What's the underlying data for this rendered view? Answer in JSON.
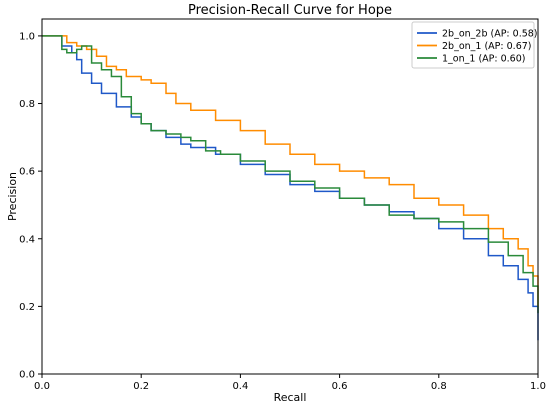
{
  "chart_data": {
    "type": "line",
    "title": "Precision-Recall Curve for Hope",
    "xlabel": "Recall",
    "ylabel": "Precision",
    "xlim": [
      0.0,
      1.0
    ],
    "ylim": [
      0.0,
      1.05
    ],
    "xticks": [
      "0.0",
      "0.2",
      "0.4",
      "0.6",
      "0.8",
      "1.0"
    ],
    "yticks": [
      "0.0",
      "0.2",
      "0.4",
      "0.6",
      "0.8",
      "1.0"
    ],
    "grid": false,
    "legend_position": "top-right",
    "series": [
      {
        "name": "2b_on_2b (AP: 0.58)",
        "color": "#1f58c8",
        "points": [
          [
            0.0,
            1.0
          ],
          [
            0.03,
            1.0
          ],
          [
            0.04,
            0.97
          ],
          [
            0.06,
            0.95
          ],
          [
            0.07,
            0.93
          ],
          [
            0.08,
            0.89
          ],
          [
            0.1,
            0.86
          ],
          [
            0.12,
            0.83
          ],
          [
            0.15,
            0.79
          ],
          [
            0.18,
            0.76
          ],
          [
            0.2,
            0.74
          ],
          [
            0.22,
            0.72
          ],
          [
            0.25,
            0.7
          ],
          [
            0.28,
            0.68
          ],
          [
            0.3,
            0.67
          ],
          [
            0.35,
            0.65
          ],
          [
            0.4,
            0.62
          ],
          [
            0.45,
            0.59
          ],
          [
            0.5,
            0.56
          ],
          [
            0.55,
            0.54
          ],
          [
            0.6,
            0.52
          ],
          [
            0.65,
            0.5
          ],
          [
            0.7,
            0.48
          ],
          [
            0.75,
            0.46
          ],
          [
            0.8,
            0.43
          ],
          [
            0.85,
            0.4
          ],
          [
            0.9,
            0.35
          ],
          [
            0.93,
            0.32
          ],
          [
            0.96,
            0.28
          ],
          [
            0.98,
            0.24
          ],
          [
            0.99,
            0.2
          ],
          [
            1.0,
            0.16
          ],
          [
            1.0,
            0.1
          ]
        ]
      },
      {
        "name": "2b_on_1 (AP: 0.67)",
        "color": "#ff8c00",
        "points": [
          [
            0.0,
            1.0
          ],
          [
            0.04,
            1.0
          ],
          [
            0.05,
            0.98
          ],
          [
            0.07,
            0.97
          ],
          [
            0.09,
            0.96
          ],
          [
            0.11,
            0.94
          ],
          [
            0.13,
            0.91
          ],
          [
            0.15,
            0.9
          ],
          [
            0.17,
            0.88
          ],
          [
            0.2,
            0.87
          ],
          [
            0.22,
            0.86
          ],
          [
            0.25,
            0.83
          ],
          [
            0.27,
            0.8
          ],
          [
            0.3,
            0.78
          ],
          [
            0.35,
            0.75
          ],
          [
            0.4,
            0.72
          ],
          [
            0.45,
            0.68
          ],
          [
            0.5,
            0.65
          ],
          [
            0.55,
            0.62
          ],
          [
            0.6,
            0.6
          ],
          [
            0.65,
            0.58
          ],
          [
            0.7,
            0.56
          ],
          [
            0.75,
            0.52
          ],
          [
            0.8,
            0.5
          ],
          [
            0.85,
            0.47
          ],
          [
            0.9,
            0.43
          ],
          [
            0.93,
            0.4
          ],
          [
            0.96,
            0.37
          ],
          [
            0.98,
            0.32
          ],
          [
            0.99,
            0.29
          ],
          [
            1.0,
            0.26
          ],
          [
            1.0,
            0.2
          ]
        ]
      },
      {
        "name": "1_on_1 (AP: 0.60)",
        "color": "#2a8a3a",
        "points": [
          [
            0.0,
            1.0
          ],
          [
            0.03,
            1.0
          ],
          [
            0.04,
            0.96
          ],
          [
            0.05,
            0.95
          ],
          [
            0.07,
            0.96
          ],
          [
            0.08,
            0.97
          ],
          [
            0.1,
            0.92
          ],
          [
            0.12,
            0.9
          ],
          [
            0.14,
            0.88
          ],
          [
            0.16,
            0.82
          ],
          [
            0.18,
            0.77
          ],
          [
            0.2,
            0.74
          ],
          [
            0.22,
            0.72
          ],
          [
            0.25,
            0.71
          ],
          [
            0.28,
            0.7
          ],
          [
            0.3,
            0.69
          ],
          [
            0.33,
            0.66
          ],
          [
            0.36,
            0.65
          ],
          [
            0.4,
            0.63
          ],
          [
            0.45,
            0.6
          ],
          [
            0.5,
            0.57
          ],
          [
            0.55,
            0.55
          ],
          [
            0.6,
            0.52
          ],
          [
            0.65,
            0.5
          ],
          [
            0.7,
            0.47
          ],
          [
            0.75,
            0.46
          ],
          [
            0.8,
            0.45
          ],
          [
            0.85,
            0.43
          ],
          [
            0.9,
            0.39
          ],
          [
            0.94,
            0.35
          ],
          [
            0.97,
            0.3
          ],
          [
            0.99,
            0.26
          ],
          [
            1.0,
            0.22
          ],
          [
            1.0,
            0.18
          ]
        ]
      }
    ]
  }
}
